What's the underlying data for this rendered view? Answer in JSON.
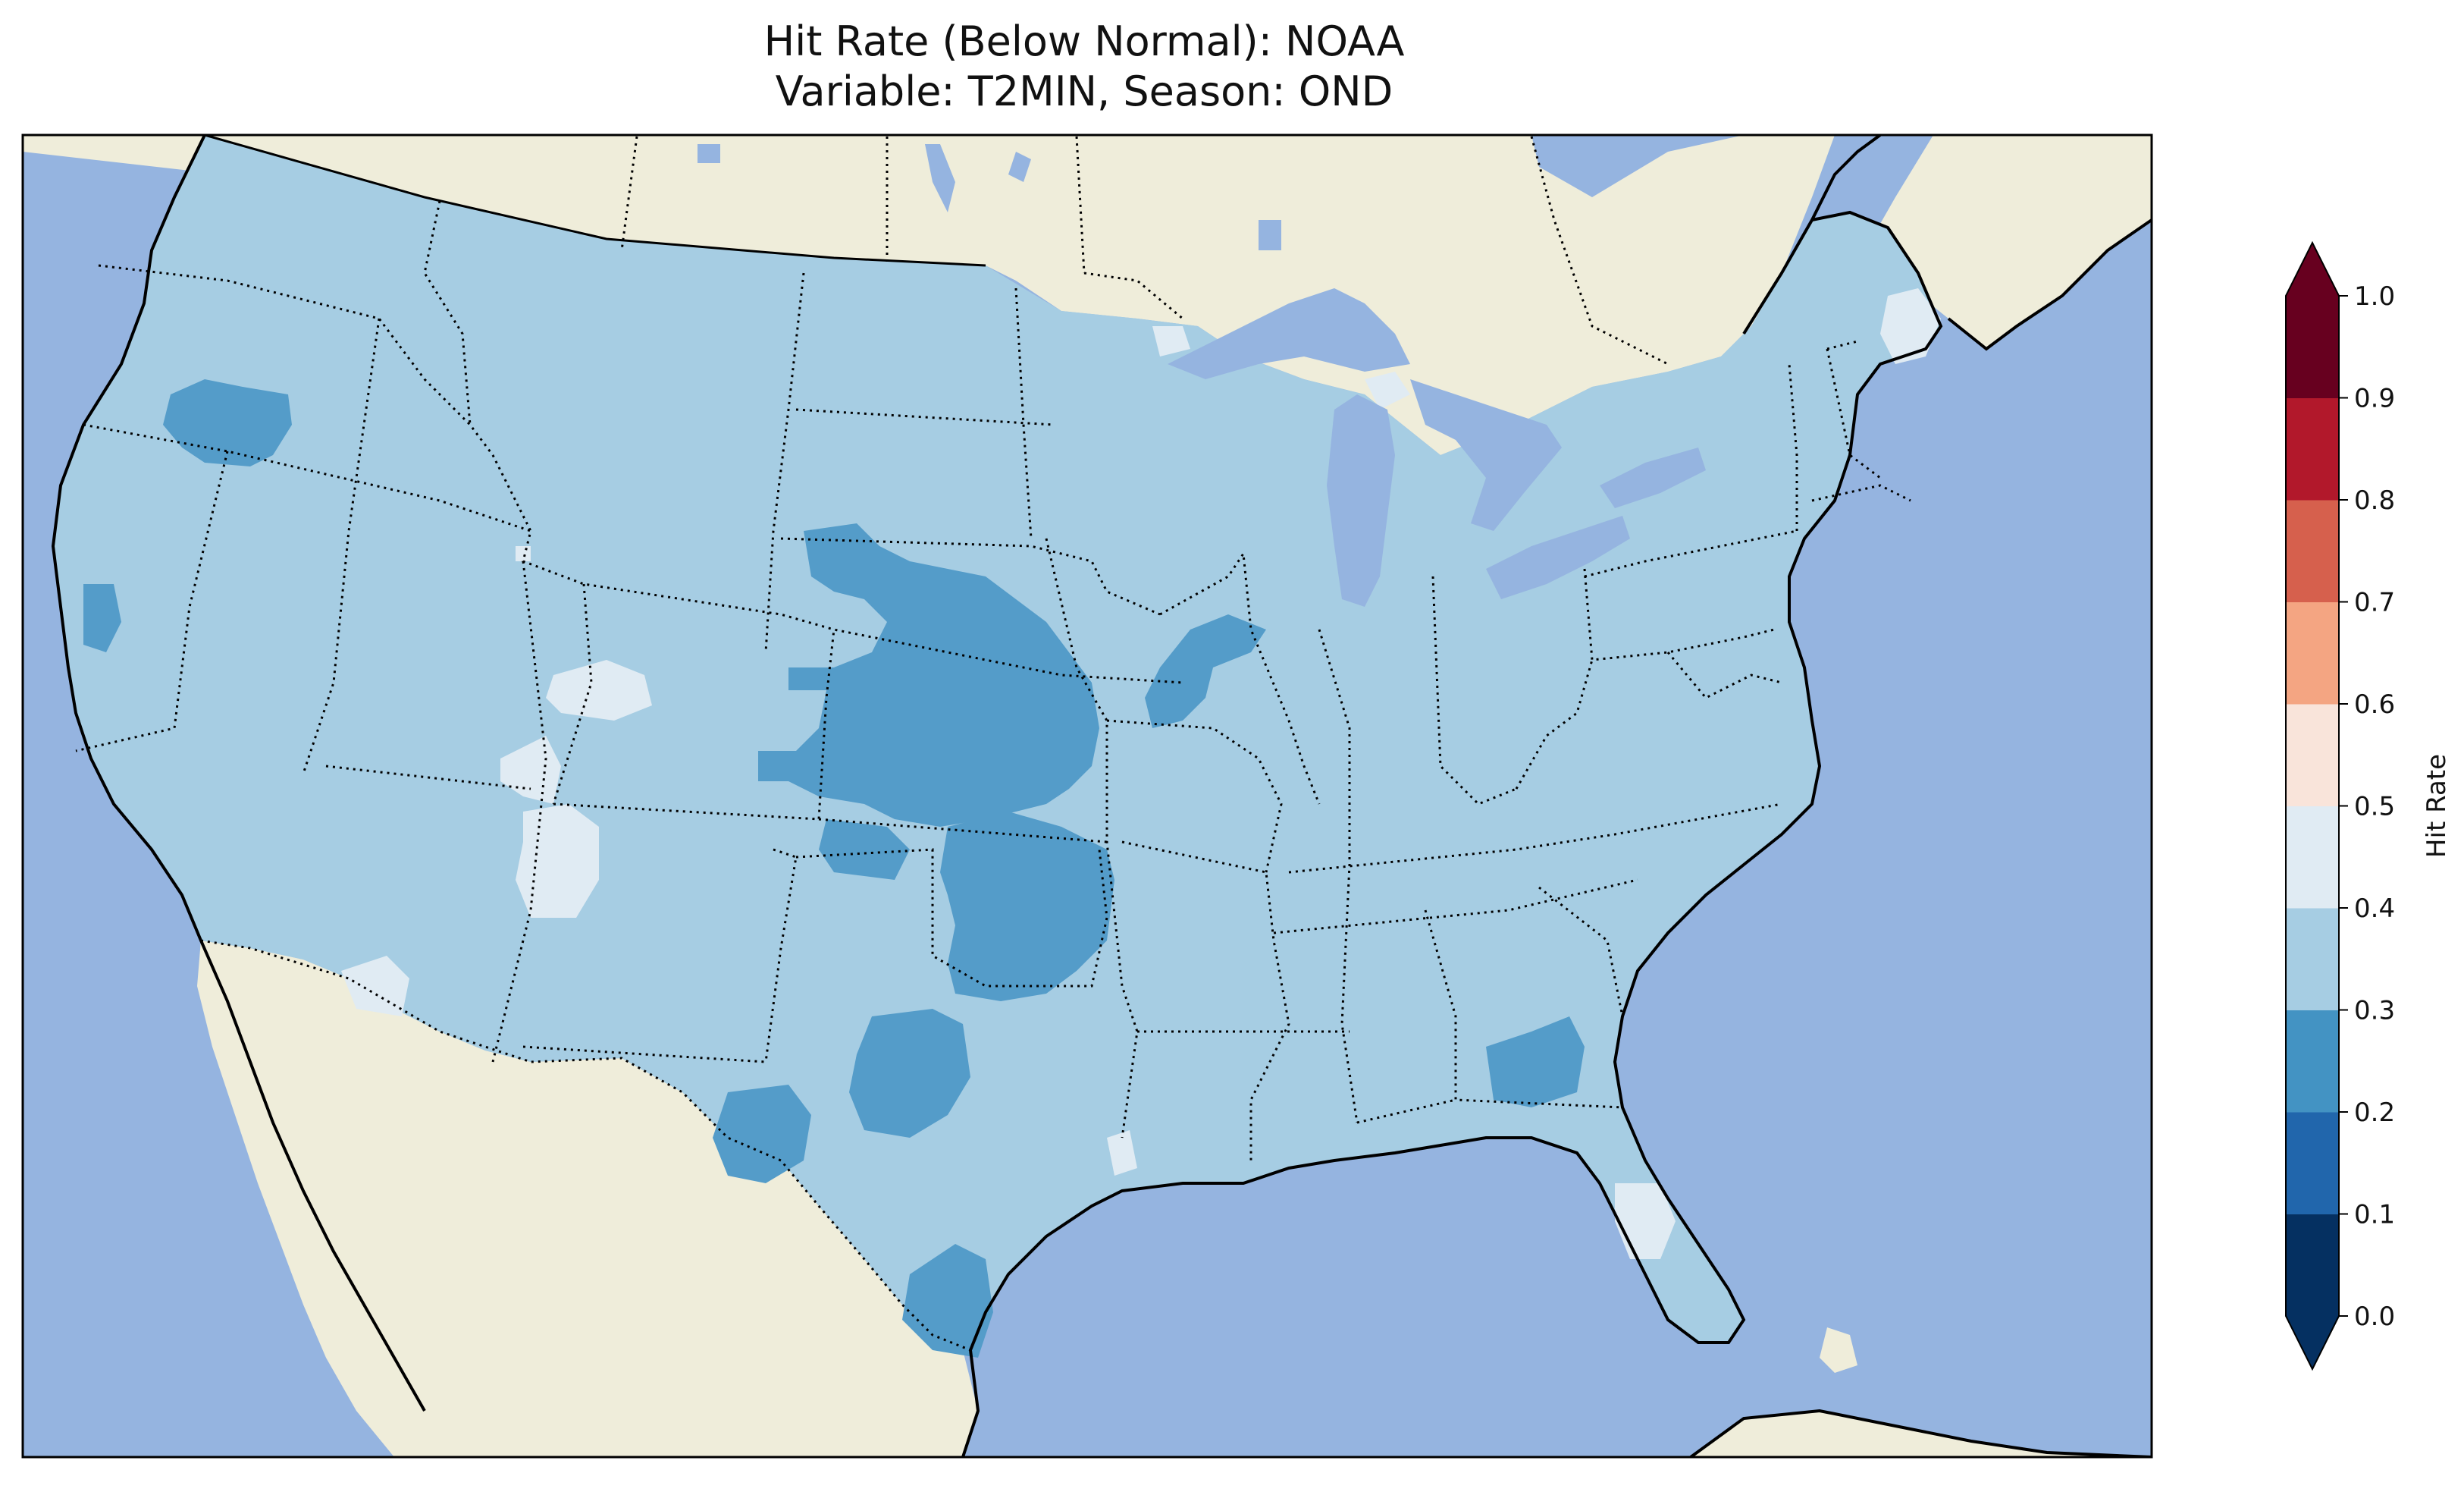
{
  "title": {
    "line1": "Hit Rate (Below Normal): NOAA",
    "line2": "Variable: T2MIN, Season: OND"
  },
  "colors": {
    "ocean": "#95b4e0",
    "land": "#efedda",
    "conus_base": "#a6cde3",
    "low_band": "#549cc9",
    "high_band": "#e0ebf3"
  },
  "colorbar": {
    "label": "Hit Rate",
    "ticks": [
      "0.0",
      "0.1",
      "0.2",
      "0.3",
      "0.4",
      "0.5",
      "0.6",
      "0.7",
      "0.8",
      "0.9",
      "1.0"
    ],
    "bins": [
      {
        "range": [
          0.0,
          0.1
        ],
        "color": "#053061"
      },
      {
        "range": [
          0.1,
          0.2
        ],
        "color": "#2166ac"
      },
      {
        "range": [
          0.2,
          0.3
        ],
        "color": "#4393c3"
      },
      {
        "range": [
          0.3,
          0.4
        ],
        "color": "#a6cde3"
      },
      {
        "range": [
          0.4,
          0.5
        ],
        "color": "#e0ebf3"
      },
      {
        "range": [
          0.5,
          0.6
        ],
        "color": "#f9e4da"
      },
      {
        "range": [
          0.6,
          0.7
        ],
        "color": "#f4a582"
      },
      {
        "range": [
          0.7,
          0.8
        ],
        "color": "#d6604d"
      },
      {
        "range": [
          0.8,
          0.9
        ],
        "color": "#b2182b"
      },
      {
        "range": [
          0.9,
          1.0
        ],
        "color": "#67001f"
      }
    ],
    "extend": "both"
  }
}
